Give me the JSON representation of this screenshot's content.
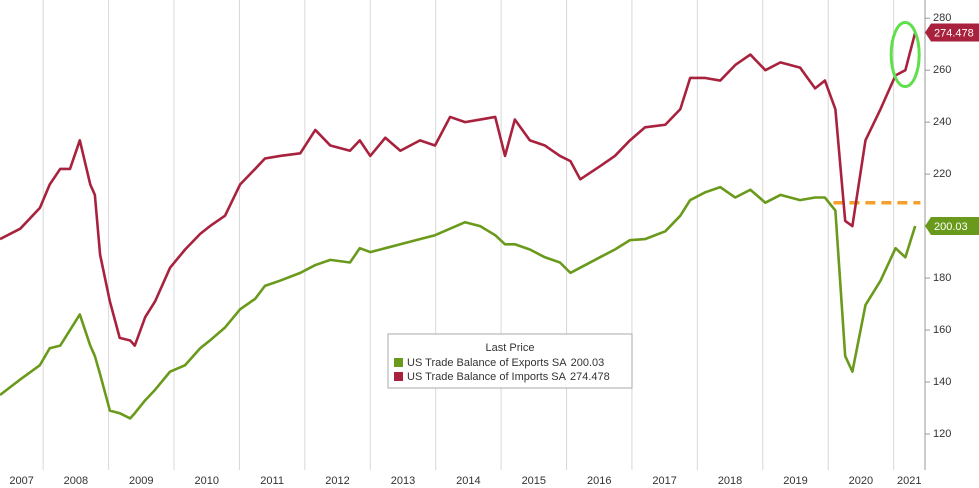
{
  "chart_data": {
    "type": "line",
    "x": [
      2007.34,
      2007.65,
      2007.95,
      2008.1,
      2008.26,
      2008.41,
      2008.56,
      2008.72,
      2008.79,
      2008.87,
      2009.02,
      2009.17,
      2009.33,
      2009.4,
      2009.56,
      2009.71,
      2009.94,
      2010.17,
      2010.4,
      2010.55,
      2010.78,
      2011.01,
      2011.24,
      2011.39,
      2011.62,
      2011.93,
      2012.16,
      2012.39,
      2012.69,
      2012.84,
      2013.0,
      2013.23,
      2013.46,
      2013.76,
      2013.99,
      2014.22,
      2014.45,
      2014.68,
      2014.91,
      2015.06,
      2015.21,
      2015.44,
      2015.67,
      2015.9,
      2016.06,
      2016.21,
      2016.51,
      2016.74,
      2016.97,
      2017.2,
      2017.51,
      2017.74,
      2017.89,
      2018.12,
      2018.35,
      2018.58,
      2018.81,
      2019.04,
      2019.27,
      2019.57,
      2019.8,
      2019.95,
      2020.11,
      2020.26,
      2020.37,
      2020.57,
      2020.8,
      2021.03,
      2021.18,
      2021.33
    ],
    "series": [
      {
        "name": "US Trade Balance of Exports SA",
        "color": "#6a9a1c",
        "values": [
          135,
          141,
          146.5,
          153,
          154,
          160,
          166,
          154,
          150,
          143,
          129,
          128,
          126,
          128,
          133,
          137,
          144,
          146.5,
          153,
          156,
          161,
          168,
          172,
          177,
          179,
          182,
          185,
          187,
          186,
          191.5,
          190,
          191.5,
          193,
          195,
          196.5,
          199,
          201.5,
          200,
          196.5,
          193,
          193,
          191,
          188,
          186,
          182,
          184,
          188,
          191,
          194.6,
          195,
          198,
          204,
          210,
          213,
          215,
          211,
          214,
          209,
          212,
          210,
          211,
          211,
          206,
          150,
          144,
          169.6,
          179,
          191.5,
          188,
          200.03
        ]
      },
      {
        "name": "US Trade Balance of Imports SA",
        "color": "#a8223e",
        "values": [
          195,
          199,
          207,
          216,
          222,
          222,
          233,
          216,
          212,
          189,
          171,
          157,
          156,
          154,
          165,
          171,
          184,
          191,
          197,
          200,
          204,
          216,
          222,
          226,
          227,
          228,
          237,
          231,
          229,
          233,
          227,
          234,
          229,
          233,
          231,
          242,
          240,
          241,
          242,
          227,
          241,
          233,
          231,
          227,
          225,
          218,
          223,
          227,
          233,
          238,
          239,
          245,
          257,
          257,
          256,
          262,
          266,
          260,
          263,
          261,
          253,
          256,
          245,
          202,
          200,
          233,
          245,
          258,
          260,
          274.478
        ]
      }
    ],
    "legend_title": "Last Price",
    "reference_line": {
      "value": 209,
      "x": [
        2020.08,
        2021.41
      ],
      "color": "#f5a02c"
    },
    "xlim": [
      2007.34,
      2021.48
    ],
    "xticks": [
      2007,
      2008,
      2009,
      2010,
      2011,
      2012,
      2013,
      2014,
      2015,
      2016,
      2017,
      2018,
      2019,
      2020,
      2021
    ],
    "ylim": [
      110,
      287
    ],
    "yticks": [
      120,
      140,
      160,
      180,
      200,
      220,
      240,
      260,
      280
    ],
    "grid": true
  }
}
